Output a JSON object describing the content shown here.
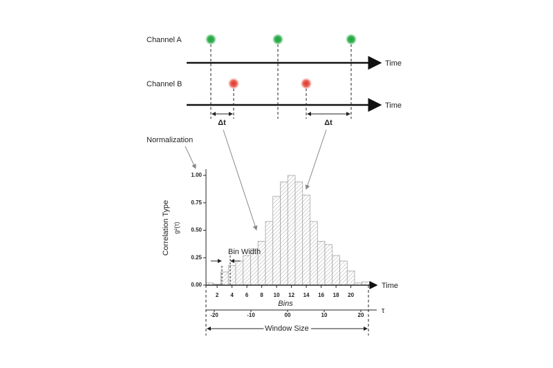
{
  "channel_a": {
    "label": "Channel A",
    "axis_label": "Time"
  },
  "channel_b": {
    "label": "Channel B",
    "axis_label": "Time"
  },
  "delta_labels": [
    "Δt",
    "Δt"
  ],
  "normalization": "Normalization",
  "histogram": {
    "y_label": "Correlation Type",
    "y_sublabel": "g²(τ)",
    "x_label": "Time",
    "bins_label": "Bins",
    "bin_width_label": "Bin Width",
    "values": [
      0.02,
      0.01,
      0.12,
      0.18,
      0.22,
      0.27,
      0.33,
      0.4,
      0.58,
      0.81,
      0.94,
      1.0,
      0.94,
      0.82,
      0.58,
      0.4,
      0.37,
      0.27,
      0.22,
      0.13,
      0.02,
      0.03
    ],
    "ylim": [
      0,
      1
    ],
    "yticks": [
      {
        "value": 0,
        "label": "0.00"
      },
      {
        "value": 0.25,
        "label": "0.25"
      },
      {
        "value": 0.5,
        "label": "0.50"
      },
      {
        "value": 0.75,
        "label": "0.75"
      },
      {
        "value": 1,
        "label": "1.00"
      }
    ],
    "xticks": [
      2,
      4,
      6,
      8,
      10,
      12,
      14,
      16,
      18,
      20
    ],
    "tau_label": "τ",
    "tau_ticks": [
      -20,
      -10,
      {
        "value": 0,
        "label": "00"
      },
      10,
      20
    ],
    "window_label": "Window Size"
  }
}
